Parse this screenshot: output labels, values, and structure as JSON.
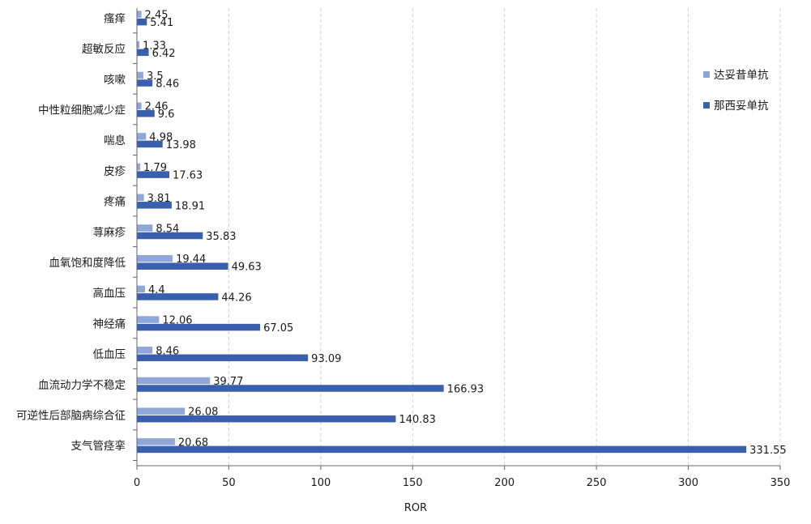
{
  "chart_data": {
    "type": "bar",
    "orientation": "horizontal",
    "title": "",
    "xlabel": "ROR",
    "ylabel": "",
    "xlim": [
      0,
      350
    ],
    "xticks": [
      0,
      50,
      100,
      150,
      200,
      250,
      300,
      350
    ],
    "grid": "vertical dashed",
    "legend_position": "right",
    "categories": [
      "瘙痒",
      "超敏反应",
      "咳嗽",
      "中性粒细胞减少症",
      "喘息",
      "皮疹",
      "疼痛",
      "荨麻疹",
      "血氧饱和度降低",
      "高血压",
      "神经痛",
      "低血压",
      "血流动力学不稳定",
      "可逆性后部脑病综合征",
      "支气管痉挛"
    ],
    "series": [
      {
        "name": "达妥昔单抗",
        "color": "#8fa6d8",
        "values": [
          2.45,
          1.33,
          3.5,
          2.46,
          4.98,
          1.79,
          3.81,
          8.54,
          19.44,
          4.4,
          12.06,
          8.46,
          39.77,
          26.08,
          20.68
        ]
      },
      {
        "name": "那西妥单抗",
        "color": "#3a5fae",
        "values": [
          5.41,
          6.42,
          8.46,
          9.6,
          13.98,
          17.63,
          18.91,
          35.83,
          49.63,
          44.26,
          67.05,
          93.09,
          166.93,
          140.83,
          331.55
        ]
      }
    ]
  }
}
